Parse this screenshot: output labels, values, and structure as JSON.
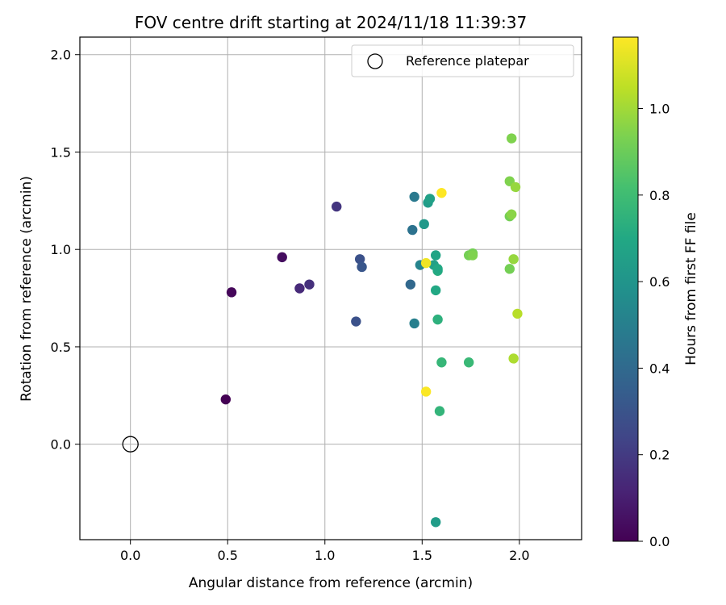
{
  "chart_data": {
    "type": "scatter",
    "title": "FOV centre drift starting at 2024/11/18 11:39:37",
    "xlabel": "Angular distance from reference (arcmin)",
    "ylabel": "Rotation from reference (arcmin)",
    "xlim": [
      -0.26,
      2.32
    ],
    "ylim": [
      -0.49,
      2.09
    ],
    "xticks": [
      0.0,
      0.5,
      1.0,
      1.5,
      2.0
    ],
    "xtick_labels": [
      "0.0",
      "0.5",
      "1.0",
      "1.5",
      "2.0"
    ],
    "yticks": [
      0.0,
      0.5,
      1.0,
      1.5,
      2.0
    ],
    "ytick_labels": [
      "0.0",
      "0.5",
      "1.0",
      "1.5",
      "2.0"
    ],
    "grid": true,
    "legend": {
      "position": "top-right",
      "entries": [
        "Reference platepar"
      ]
    },
    "reference_point": {
      "x": 0.0,
      "y": 0.0,
      "label": "Reference platepar"
    },
    "colorbar": {
      "label": "Hours from first FF file",
      "colormap": "viridis",
      "range": [
        0.0,
        1.165
      ],
      "ticks": [
        0.0,
        0.2,
        0.4,
        0.6,
        0.8,
        1.0
      ],
      "tick_labels": [
        "0.0",
        "0.2",
        "0.4",
        "0.6",
        "0.8",
        "1.0"
      ]
    },
    "points": [
      {
        "x": 0.49,
        "y": 0.23,
        "c": 0.0
      },
      {
        "x": 0.52,
        "y": 0.78,
        "c": 0.02
      },
      {
        "x": 0.78,
        "y": 0.96,
        "c": 0.04
      },
      {
        "x": 0.87,
        "y": 0.8,
        "c": 0.14
      },
      {
        "x": 0.92,
        "y": 0.82,
        "c": 0.16
      },
      {
        "x": 1.06,
        "y": 1.22,
        "c": 0.18
      },
      {
        "x": 1.16,
        "y": 0.63,
        "c": 0.29
      },
      {
        "x": 1.18,
        "y": 0.95,
        "c": 0.29
      },
      {
        "x": 1.19,
        "y": 0.91,
        "c": 0.31
      },
      {
        "x": 1.44,
        "y": 0.82,
        "c": 0.39
      },
      {
        "x": 1.45,
        "y": 1.1,
        "c": 0.44
      },
      {
        "x": 1.46,
        "y": 1.27,
        "c": 0.47
      },
      {
        "x": 1.46,
        "y": 0.62,
        "c": 0.5
      },
      {
        "x": 1.49,
        "y": 0.92,
        "c": 0.52
      },
      {
        "x": 1.51,
        "y": 1.13,
        "c": 0.62
      },
      {
        "x": 1.53,
        "y": 1.24,
        "c": 0.64
      },
      {
        "x": 1.54,
        "y": 1.26,
        "c": 0.66
      },
      {
        "x": 1.56,
        "y": 0.92,
        "c": 0.66
      },
      {
        "x": 1.57,
        "y": 0.97,
        "c": 0.68
      },
      {
        "x": 1.57,
        "y": 0.79,
        "c": 0.7
      },
      {
        "x": 1.57,
        "y": -0.4,
        "c": 0.64
      },
      {
        "x": 1.58,
        "y": 0.89,
        "c": 0.72
      },
      {
        "x": 1.58,
        "y": 0.9,
        "c": 0.7
      },
      {
        "x": 1.58,
        "y": 0.64,
        "c": 0.74
      },
      {
        "x": 1.59,
        "y": 0.17,
        "c": 0.76
      },
      {
        "x": 1.6,
        "y": 0.42,
        "c": 0.77
      },
      {
        "x": 1.74,
        "y": 0.42,
        "c": 0.78
      },
      {
        "x": 1.74,
        "y": 0.97,
        "c": 0.92
      },
      {
        "x": 1.76,
        "y": 0.98,
        "c": 0.92
      },
      {
        "x": 1.76,
        "y": 0.97,
        "c": 0.94
      },
      {
        "x": 1.95,
        "y": 0.9,
        "c": 0.92
      },
      {
        "x": 1.95,
        "y": 1.35,
        "c": 0.94
      },
      {
        "x": 1.95,
        "y": 1.17,
        "c": 0.92
      },
      {
        "x": 1.96,
        "y": 1.57,
        "c": 0.94
      },
      {
        "x": 1.96,
        "y": 1.18,
        "c": 0.96
      },
      {
        "x": 1.97,
        "y": 0.95,
        "c": 0.98
      },
      {
        "x": 1.98,
        "y": 1.32,
        "c": 0.98
      },
      {
        "x": 1.97,
        "y": 0.44,
        "c": 1.02
      },
      {
        "x": 1.99,
        "y": 0.67,
        "c": 1.04
      },
      {
        "x": 1.52,
        "y": 0.93,
        "c": 1.14
      },
      {
        "x": 1.52,
        "y": 0.27,
        "c": 1.16
      },
      {
        "x": 1.6,
        "y": 1.29,
        "c": 1.165
      }
    ]
  }
}
